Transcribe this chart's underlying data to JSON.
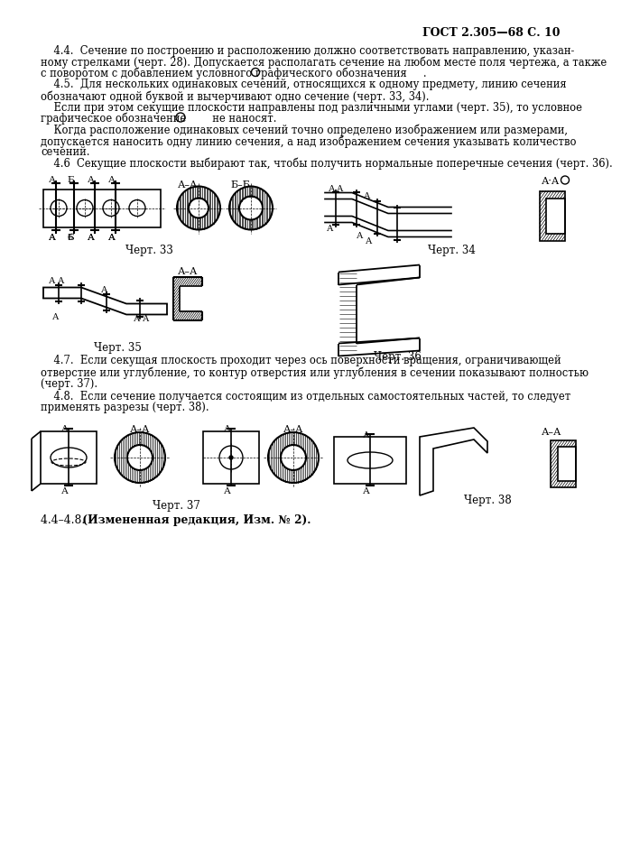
{
  "bg_color": "#ffffff",
  "header_text": "ГОСТ 2.305—68 С. 10",
  "body_lines": [
    "    4.4.  Сечение по построению и расположению должно соответствовать направлению, указан-",
    "ному стрелками (черт. 28). Допускается располагать сечение на любом месте поля чертежа, а также",
    "с поворотом с добавлением условного графического обозначения     .",
    "    4.5.  Для нескольких одинаковых сечений, относящихся к одному предмету, линию сечения",
    "обозначают одной буквой и вычерчивают одно сечение (черт. 33, 34).",
    "    Если при этом секущие плоскости направлены под различными углами (черт. 35), то условное",
    "графическое обозначение        не наносят.",
    "    Когда расположение одинаковых сечений точно определено изображением или размерами,",
    "допускается наносить одну линию сечения, а над изображением сечения указывать количество",
    "сечений.",
    "    4.6  Секущие плоскости выбирают так, чтобы получить нормальные поперечные сечения (черт. 36)."
  ],
  "chert33": "Черт. 33",
  "chert34": "Черт. 34",
  "chert35": "Черт. 35",
  "chert36": "Черт. 36",
  "chert37": "Черт. 37",
  "chert38": "Черт. 38",
  "lines47": [
    "    4.7.  Если секущая плоскость проходит через ось поверхности вращения, ограничивающей",
    "отверстие или углубление, то контур отверстия или углубления в сечении показывают полностью",
    "(черт. 37)."
  ],
  "lines48": [
    "    4.8.  Если сечение получается состоящим из отдельных самостоятельных частей, то следует",
    "применять разрезы (черт. 38)."
  ],
  "final_prefix": "4.4–4.8. ",
  "final_bold": " (Измененная редакция, Изм. № 2)."
}
